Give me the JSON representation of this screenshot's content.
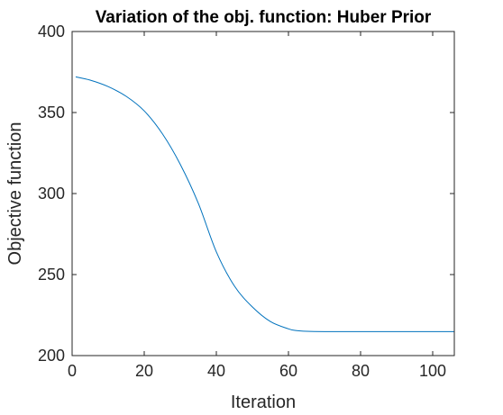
{
  "chart_data": {
    "type": "line",
    "title": "Variation of the obj. function: Huber Prior",
    "xlabel": "Iteration",
    "ylabel": "Objective function",
    "xlim": [
      0,
      106
    ],
    "ylim": [
      200,
      400
    ],
    "xticks": [
      0,
      20,
      40,
      60,
      80,
      100
    ],
    "yticks": [
      200,
      250,
      300,
      350,
      400
    ],
    "grid": false,
    "box": true,
    "series": [
      {
        "color": "#0072BD",
        "x": [
          1,
          5,
          10,
          15,
          20,
          25,
          30,
          35,
          40,
          45,
          50,
          55,
          60,
          62,
          65,
          70,
          80,
          90,
          100,
          106
        ],
        "y": [
          372,
          370,
          366,
          360,
          351,
          337,
          318,
          294,
          264,
          243,
          230,
          221,
          216.5,
          215.5,
          215,
          214.8,
          214.8,
          214.8,
          214.8,
          214.8
        ]
      }
    ]
  }
}
